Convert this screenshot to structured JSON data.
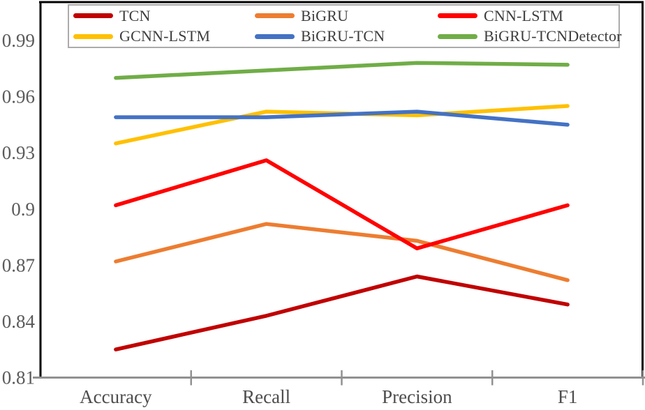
{
  "chart_data": {
    "type": "line",
    "title": "",
    "xlabel": "",
    "ylabel": "",
    "categories": [
      "Accuracy",
      "Recall",
      "Precision",
      "F1"
    ],
    "series": [
      {
        "name": "TCN",
        "color": "#c00000",
        "values": [
          0.825,
          0.843,
          0.864,
          0.849
        ]
      },
      {
        "name": "BiGRU",
        "color": "#ed7d31",
        "values": [
          0.872,
          0.892,
          0.883,
          0.862
        ]
      },
      {
        "name": "CNN-LSTM",
        "color": "#ff0000",
        "values": [
          0.902,
          0.926,
          0.879,
          0.902
        ]
      },
      {
        "name": "GCNN-LSTM",
        "color": "#ffc000",
        "values": [
          0.935,
          0.952,
          0.95,
          0.955
        ]
      },
      {
        "name": "BiGRU-TCN",
        "color": "#4472c4",
        "values": [
          0.949,
          0.949,
          0.952,
          0.945
        ]
      },
      {
        "name": "BiGRU-TCNDetector",
        "color": "#70ad47",
        "values": [
          0.97,
          0.974,
          0.978,
          0.977
        ]
      }
    ],
    "y_ticks": [
      "0.81",
      "0.84",
      "0.87",
      "0.9",
      "0.93",
      "0.96",
      "0.99"
    ],
    "ylim": [
      0.81,
      0.99
    ],
    "grid": false,
    "legend_position": "top-inside",
    "legend_rows": 2,
    "colors": {
      "plot_border": "#000000",
      "axis_line": "#919191",
      "tick_label": "#5a5a5a",
      "legend_border": "#ababab"
    }
  }
}
